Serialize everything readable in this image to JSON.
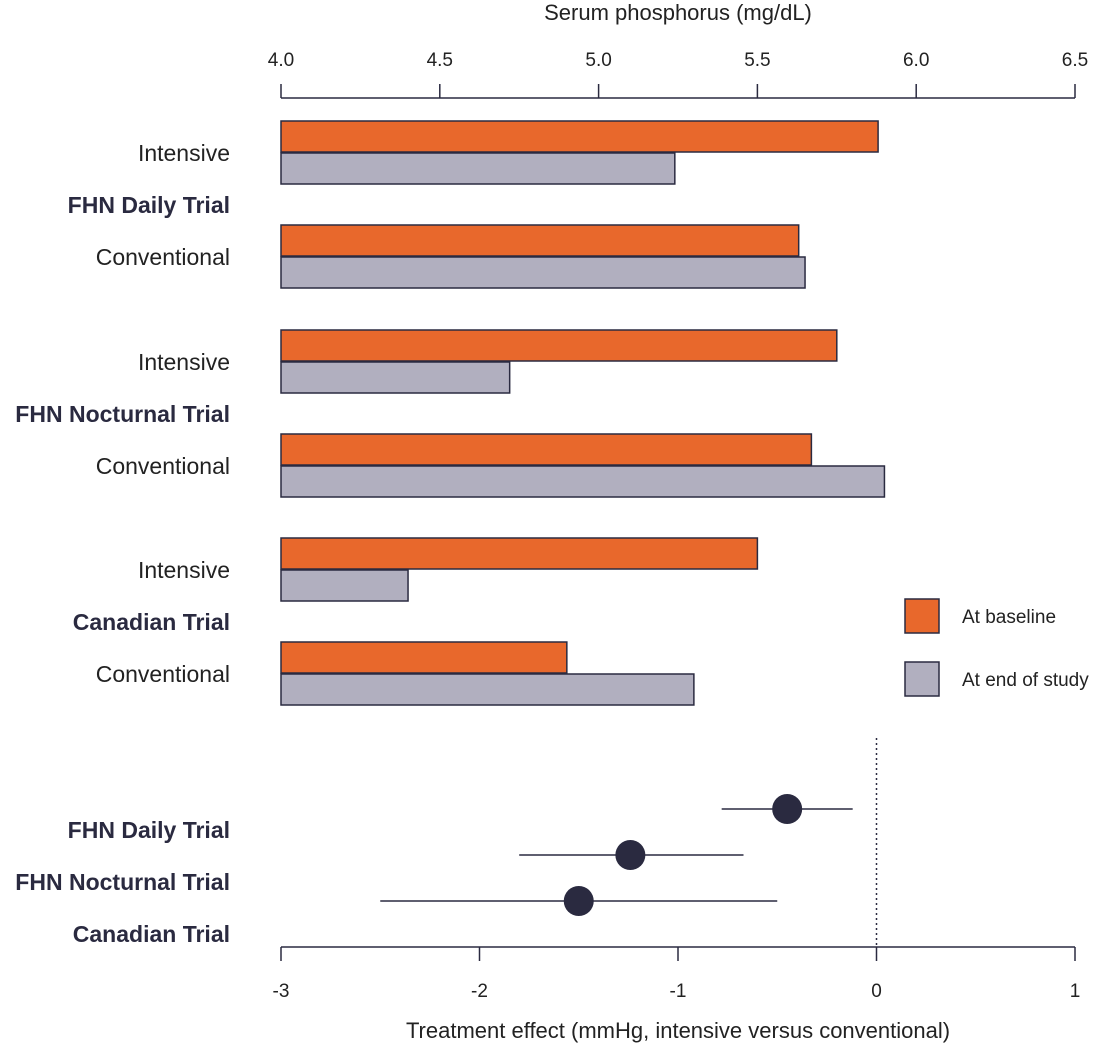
{
  "colors": {
    "baseline": "#e8682c",
    "end": "#b1afbf",
    "outline": "#2a2a40",
    "point": "#2a2a40"
  },
  "chart_data": [
    {
      "type": "bar",
      "orientation": "horizontal",
      "title": "",
      "xlabel": "Serum phosphorus (mg/dL)",
      "xlim": [
        4.0,
        6.5
      ],
      "xticks": [
        "4.0",
        "4.5",
        "5.0",
        "5.5",
        "6.0",
        "6.5"
      ],
      "axis_position": "top",
      "groups": [
        {
          "trial": "FHN Daily Trial",
          "arms": [
            {
              "label": "Intensive",
              "baseline": 5.88,
              "end": 5.24
            },
            {
              "label": "Conventional",
              "baseline": 5.63,
              "end": 5.65
            }
          ]
        },
        {
          "trial": "FHN Nocturnal Trial",
          "arms": [
            {
              "label": "Intensive",
              "baseline": 5.75,
              "end": 4.72
            },
            {
              "label": "Conventional",
              "baseline": 5.67,
              "end": 5.9
            }
          ]
        },
        {
          "trial": "Canadian Trial",
          "arms": [
            {
              "label": "Intensive",
              "baseline": 5.5,
              "end": 4.4
            },
            {
              "label": "Conventional",
              "baseline": 4.9,
              "end": 5.3
            }
          ]
        }
      ],
      "legend": {
        "placement": "right",
        "entries": [
          {
            "label": "At baseline",
            "color_key": "baseline"
          },
          {
            "label": "At end of study",
            "color_key": "end"
          }
        ]
      }
    },
    {
      "type": "scatter",
      "subtype": "forest",
      "xlabel": "Treatment effect (mmHg, intensive versus conventional)",
      "xlim": [
        -3,
        1
      ],
      "xticks": [
        "-3",
        "-2",
        "-1",
        "0",
        "1"
      ],
      "reference_line": 0,
      "points": [
        {
          "label": "FHN Daily Trial",
          "estimate": -0.45,
          "lower": -0.78,
          "upper": -0.12
        },
        {
          "label": "FHN Nocturnal Trial",
          "estimate": -1.24,
          "lower": -1.8,
          "upper": -0.67
        },
        {
          "label": "Canadian Trial",
          "estimate": -1.5,
          "lower": -2.5,
          "upper": -0.5
        }
      ]
    }
  ]
}
